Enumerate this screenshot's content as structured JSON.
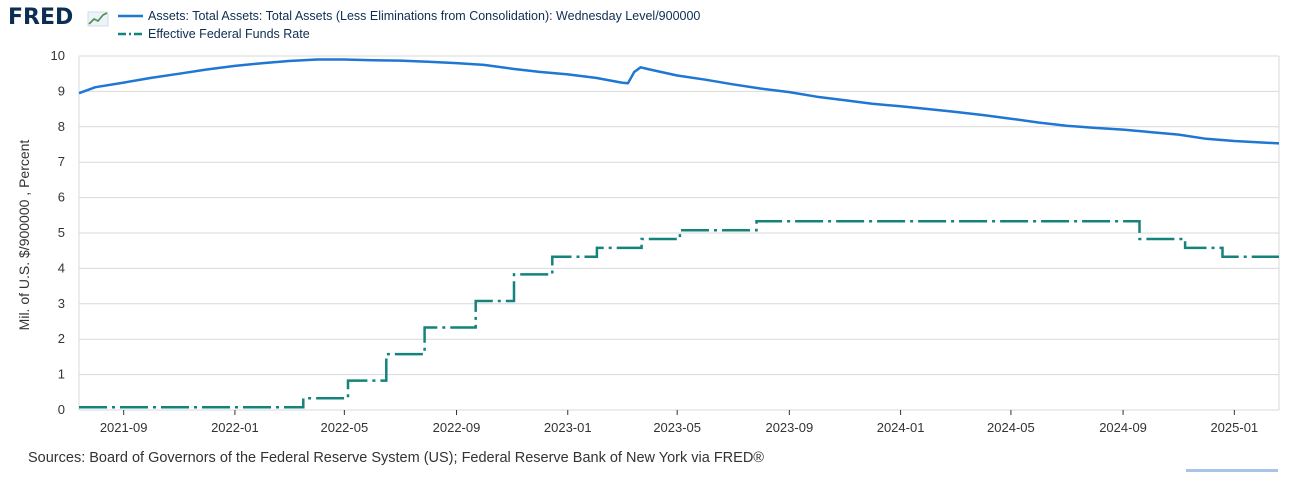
{
  "header": {
    "logo_text": "FRED"
  },
  "source_text": "Sources: Board of Governors of the Federal Reserve System (US); Federal Reserve Bank of New York via FRED®",
  "chart_data": {
    "type": "line",
    "title": "",
    "ylabel": "Mil. of U.S. $/900000 , Percent",
    "xlabel": "",
    "ylim": [
      0,
      10
    ],
    "yticks": [
      0,
      1,
      2,
      3,
      4,
      5,
      6,
      7,
      8,
      9,
      10
    ],
    "xlim": [
      "2021-07-14",
      "2025-02-19"
    ],
    "xticks": [
      "2021-09",
      "2022-01",
      "2022-05",
      "2022-09",
      "2023-01",
      "2023-05",
      "2023-09",
      "2024-01",
      "2024-05",
      "2024-09",
      "2025-01"
    ],
    "grid": "horizontal",
    "legend_position": "top-left",
    "colors": {
      "assets": "#1f77d4",
      "effr": "#14837b"
    },
    "series": [
      {
        "name": "Assets: Total Assets: Total Assets (Less Eliminations from Consolidation): Wednesday Level/900000",
        "style": "solid",
        "color": "#1f77d4",
        "points": [
          [
            "2021-07-14",
            8.95
          ],
          [
            "2021-08-01",
            9.12
          ],
          [
            "2021-09-01",
            9.25
          ],
          [
            "2021-10-01",
            9.38
          ],
          [
            "2021-11-01",
            9.5
          ],
          [
            "2021-12-01",
            9.62
          ],
          [
            "2022-01-01",
            9.72
          ],
          [
            "2022-02-01",
            9.8
          ],
          [
            "2022-03-01",
            9.86
          ],
          [
            "2022-04-01",
            9.9
          ],
          [
            "2022-05-01",
            9.9
          ],
          [
            "2022-06-01",
            9.88
          ],
          [
            "2022-07-01",
            9.87
          ],
          [
            "2022-08-01",
            9.84
          ],
          [
            "2022-09-01",
            9.8
          ],
          [
            "2022-10-01",
            9.75
          ],
          [
            "2022-11-01",
            9.64
          ],
          [
            "2022-12-01",
            9.55
          ],
          [
            "2023-01-01",
            9.48
          ],
          [
            "2023-02-01",
            9.38
          ],
          [
            "2023-03-01",
            9.25
          ],
          [
            "2023-03-08",
            9.23
          ],
          [
            "2023-03-15",
            9.55
          ],
          [
            "2023-03-22",
            9.68
          ],
          [
            "2023-04-01",
            9.62
          ],
          [
            "2023-05-01",
            9.45
          ],
          [
            "2023-06-01",
            9.33
          ],
          [
            "2023-07-01",
            9.2
          ],
          [
            "2023-08-01",
            9.08
          ],
          [
            "2023-09-01",
            8.98
          ],
          [
            "2023-10-01",
            8.85
          ],
          [
            "2023-11-01",
            8.75
          ],
          [
            "2023-12-01",
            8.65
          ],
          [
            "2024-01-01",
            8.58
          ],
          [
            "2024-02-01",
            8.5
          ],
          [
            "2024-03-01",
            8.42
          ],
          [
            "2024-04-01",
            8.33
          ],
          [
            "2024-05-01",
            8.23
          ],
          [
            "2024-06-01",
            8.12
          ],
          [
            "2024-07-01",
            8.03
          ],
          [
            "2024-08-01",
            7.97
          ],
          [
            "2024-09-01",
            7.92
          ],
          [
            "2024-10-01",
            7.85
          ],
          [
            "2024-11-01",
            7.78
          ],
          [
            "2024-12-01",
            7.66
          ],
          [
            "2025-01-01",
            7.6
          ],
          [
            "2025-02-19",
            7.53
          ]
        ]
      },
      {
        "name": "Effective Federal Funds Rate",
        "style": "dashdot",
        "color": "#14837b",
        "steps": [
          [
            "2021-07-14",
            0.08
          ],
          [
            "2022-03-17",
            0.33
          ],
          [
            "2022-05-05",
            0.83
          ],
          [
            "2022-06-16",
            1.58
          ],
          [
            "2022-07-28",
            2.33
          ],
          [
            "2022-09-22",
            3.08
          ],
          [
            "2022-11-03",
            3.83
          ],
          [
            "2022-12-15",
            4.33
          ],
          [
            "2023-02-02",
            4.58
          ],
          [
            "2023-03-23",
            4.83
          ],
          [
            "2023-05-04",
            5.08
          ],
          [
            "2023-07-27",
            5.33
          ],
          [
            "2024-09-19",
            4.83
          ],
          [
            "2024-11-08",
            4.58
          ],
          [
            "2024-12-19",
            4.33
          ],
          [
            "2025-02-19",
            4.33
          ]
        ]
      }
    ]
  }
}
